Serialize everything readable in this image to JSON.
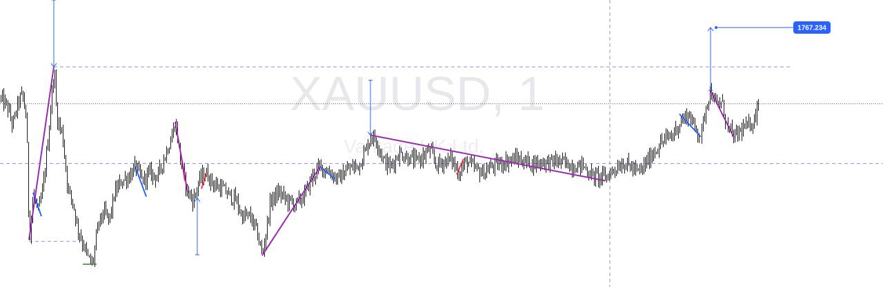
{
  "chart_data": {
    "type": "line",
    "symbol": "XAUUSD, 1",
    "watermark_sub": "Vantage UK Ltd.",
    "price_label": "1767.234",
    "colors": {
      "candle": "#1a1a1a",
      "zigzag": "#9c27b0",
      "bull_leg": "#2962ff",
      "bear_leg": "#f23645",
      "measure": "#2962ff",
      "dashed_level": "#6a74d8",
      "dotted_level": "#555555",
      "crosshair": "#9598a1",
      "label_bg": "#2962ff"
    },
    "y_range": [
      1738.5,
      1775
    ],
    "close_path": [
      [
        0,
        1762.5
      ],
      [
        10,
        1761.5
      ],
      [
        18,
        1759.0
      ],
      [
        26,
        1762.0
      ],
      [
        32,
        1763.0
      ],
      [
        38,
        1760.0
      ],
      [
        42,
        1744.5
      ],
      [
        48,
        1750.5
      ],
      [
        55,
        1748.0
      ],
      [
        62,
        1751.0
      ],
      [
        70,
        1758.0
      ],
      [
        78,
        1766.5
      ],
      [
        82,
        1760.0
      ],
      [
        90,
        1758.0
      ],
      [
        98,
        1751.0
      ],
      [
        106,
        1749.0
      ],
      [
        112,
        1746.0
      ],
      [
        120,
        1744.0
      ],
      [
        128,
        1742.0
      ],
      [
        134,
        1741.5
      ],
      [
        142,
        1746.5
      ],
      [
        150,
        1748.0
      ],
      [
        158,
        1747.0
      ],
      [
        166,
        1750.5
      ],
      [
        176,
        1752.0
      ],
      [
        186,
        1752.5
      ],
      [
        196,
        1753.8
      ],
      [
        206,
        1752.0
      ],
      [
        216,
        1753.0
      ],
      [
        228,
        1752.5
      ],
      [
        240,
        1755.5
      ],
      [
        248,
        1757.5
      ],
      [
        254,
        1759.5
      ],
      [
        262,
        1754.0
      ],
      [
        272,
        1750.5
      ],
      [
        280,
        1749.5
      ],
      [
        288,
        1752.0
      ],
      [
        298,
        1753.0
      ],
      [
        310,
        1751.5
      ],
      [
        322,
        1751.0
      ],
      [
        334,
        1750.0
      ],
      [
        342,
        1749.5
      ],
      [
        350,
        1747.5
      ],
      [
        362,
        1747.5
      ],
      [
        372,
        1745.5
      ],
      [
        380,
        1742.5
      ],
      [
        392,
        1749.5
      ],
      [
        404,
        1750.5
      ],
      [
        416,
        1749.5
      ],
      [
        428,
        1749.0
      ],
      [
        440,
        1750.0
      ],
      [
        452,
        1752.5
      ],
      [
        464,
        1753.8
      ],
      [
        476,
        1753.2
      ],
      [
        490,
        1752.2
      ],
      [
        504,
        1753.5
      ],
      [
        520,
        1754.0
      ],
      [
        530,
        1756.0
      ],
      [
        538,
        1757.8
      ],
      [
        546,
        1757.0
      ],
      [
        556,
        1754.5
      ],
      [
        566,
        1753.8
      ],
      [
        578,
        1755.5
      ],
      [
        590,
        1755.0
      ],
      [
        602,
        1754.5
      ],
      [
        612,
        1755.0
      ],
      [
        622,
        1756.0
      ],
      [
        632,
        1754.0
      ],
      [
        644,
        1754.5
      ],
      [
        654,
        1754.8
      ],
      [
        664,
        1753.0
      ],
      [
        676,
        1754.5
      ],
      [
        688,
        1753.5
      ],
      [
        700,
        1753.0
      ],
      [
        712,
        1753.8
      ],
      [
        724,
        1754.2
      ],
      [
        736,
        1754.6
      ],
      [
        748,
        1754.8
      ],
      [
        760,
        1754.5
      ],
      [
        772,
        1754.2
      ],
      [
        784,
        1754.4
      ],
      [
        796,
        1754.4
      ],
      [
        808,
        1754.5
      ],
      [
        820,
        1754.2
      ],
      [
        832,
        1753.8
      ],
      [
        844,
        1754.0
      ],
      [
        856,
        1752.8
      ],
      [
        866,
        1752.5
      ],
      [
        878,
        1752.5
      ],
      [
        890,
        1753.5
      ],
      [
        902,
        1754.3
      ],
      [
        914,
        1753.8
      ],
      [
        926,
        1753.0
      ],
      [
        938,
        1754.5
      ],
      [
        950,
        1756.0
      ],
      [
        962,
        1757.2
      ],
      [
        974,
        1757.8
      ],
      [
        986,
        1759.5
      ],
      [
        998,
        1760.5
      ],
      [
        1008,
        1758.5
      ],
      [
        1016,
        1757.8
      ],
      [
        1024,
        1762.0
      ],
      [
        1030,
        1763.5
      ],
      [
        1038,
        1761.5
      ],
      [
        1046,
        1762.0
      ],
      [
        1054,
        1758.8
      ],
      [
        1064,
        1757.5
      ],
      [
        1074,
        1758.5
      ],
      [
        1086,
        1759.0
      ],
      [
        1094,
        1760.0
      ],
      [
        1100,
        1762.8
      ]
    ],
    "zigzag": [
      [
        [
          42,
          1744.5
        ],
        [
          78,
          1766.5
        ]
      ],
      [
        [
          254,
          1759.5
        ],
        [
          272,
          1750.5
        ]
      ],
      [
        [
          380,
          1742.5
        ],
        [
          464,
          1753.8
        ]
      ],
      [
        [
          538,
          1757.8
        ],
        [
          878,
          1752.0
        ]
      ],
      [
        [
          1030,
          1763.5
        ],
        [
          1064,
          1757.5
        ]
      ]
    ],
    "bull_legs": [
      [
        [
          48,
          1750.5
        ],
        [
          60,
          1747.5
        ]
      ],
      [
        [
          196,
          1753.8
        ],
        [
          212,
          1750.0
        ]
      ],
      [
        [
          464,
          1753.8
        ],
        [
          486,
          1752.2
        ]
      ],
      [
        [
          985,
          1760.5
        ],
        [
          1016,
          1757.6
        ]
      ]
    ],
    "bear_legs": [
      [
        [
          262,
          1755.5
        ],
        [
          268,
          1752.0
        ]
      ],
      [
        [
          292,
          1751.0
        ],
        [
          300,
          1753.0
        ]
      ],
      [
        [
          662,
          1752.8
        ],
        [
          672,
          1754.8
        ]
      ]
    ],
    "dashed_levels": [
      {
        "y": 1766.5,
        "x1": 78,
        "x2": 1145
      },
      {
        "y": 1754.2,
        "x1": 0,
        "x2": 1280
      },
      {
        "y": 1744.3,
        "x1": 42,
        "x2": 110
      }
    ],
    "dotted_levels": [
      {
        "y": 1761.8,
        "x1": 0,
        "x2": 1280
      }
    ],
    "crosshair_x": 884,
    "measures": [
      {
        "x": 78,
        "y1": 1775,
        "y2": 1766.5
      },
      {
        "x": 537,
        "y1": 1764.8,
        "y2": 1757.8
      },
      {
        "x": 286,
        "y1": 1742.6,
        "y2": 1749.8
      },
      {
        "x": 1030,
        "y1": 1763.5,
        "y2": 1771.5
      }
    ],
    "target_level": {
      "y": 1771.5,
      "x1": 1030,
      "x2": 1150
    },
    "lows": [
      {
        "x": 135,
        "y": 1739.0,
        "hl": [
          120,
          1741.4,
          140
        ]
      }
    ]
  }
}
